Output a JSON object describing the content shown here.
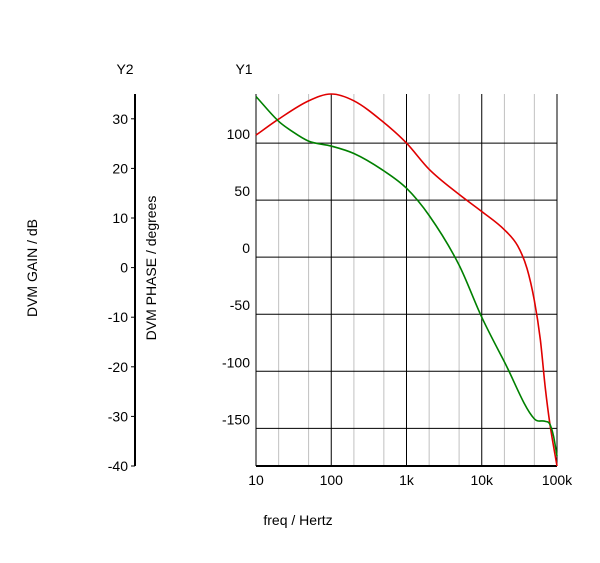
{
  "chart_data": {
    "type": "line",
    "xlabel": "freq / Hertz",
    "x_scale": "log",
    "xlim": [
      10,
      100000
    ],
    "x_ticks": [
      {
        "value": 10,
        "label": "10"
      },
      {
        "value": 100,
        "label": "100"
      },
      {
        "value": 1000,
        "label": "1k"
      },
      {
        "value": 10000,
        "label": "10k"
      },
      {
        "value": 100000,
        "label": "100k"
      }
    ],
    "y1": {
      "title": "Y1",
      "ylabel": "DVM PHASE / degrees",
      "ylim": [
        -183,
        143
      ],
      "ticks": [
        100,
        50,
        0,
        -50,
        -100,
        -150
      ],
      "tick_labels": [
        "100",
        "50",
        "0",
        "-50",
        "-100",
        "-150"
      ]
    },
    "y2": {
      "title": "Y2",
      "ylabel": "DVM GAIN / dB",
      "ylim": [
        -40,
        35
      ],
      "ticks": [
        30,
        20,
        10,
        0,
        -10,
        -20,
        -30,
        -40
      ],
      "tick_labels": [
        "30",
        "20",
        "10",
        "0",
        "-10",
        "-20",
        "-30",
        "-40"
      ]
    },
    "grid": true,
    "series": [
      {
        "axis": "y1",
        "color": "#e00000",
        "x": [
          10,
          20,
          50,
          100,
          200,
          500,
          1000,
          2000,
          5000,
          10000,
          20000,
          30000,
          40000,
          50000,
          60000,
          70000,
          80000,
          100000
        ],
        "y": [
          107,
          121,
          137,
          143,
          137,
          118,
          100,
          77,
          55,
          40,
          24,
          10,
          -10,
          -38,
          -72,
          -115,
          -145,
          -183
        ]
      },
      {
        "axis": "y2",
        "color": "#008000",
        "x": [
          10,
          20,
          30,
          50,
          100,
          200,
          500,
          1000,
          2000,
          5000,
          10000,
          20000,
          50000,
          70000,
          80000,
          90000,
          100000
        ],
        "y": [
          34.5,
          29.5,
          27.5,
          25.5,
          24.5,
          23,
          19.5,
          16,
          10.5,
          0.5,
          -10,
          -19,
          -30.5,
          -31,
          -31.5,
          -34,
          -38
        ]
      }
    ]
  }
}
